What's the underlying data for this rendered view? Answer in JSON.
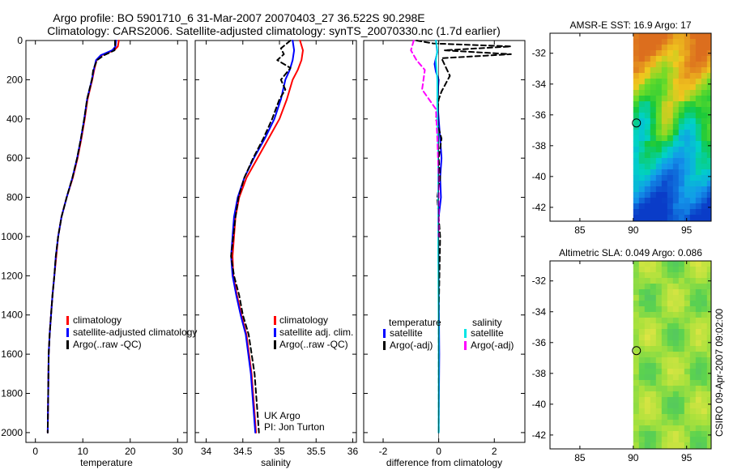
{
  "title_line1": "Argo profile: BO 5901710_6 31-Mar-2007 20070403_27 36.522S 90.298E",
  "title_line2": "Climatology: CARS2006. Satellite-adjusted climatology: synTS_20070330.nc (1.7d earlier)",
  "side_label": "CSIRO 09-Apr-2007 09:02:00",
  "colors": {
    "climatology": "#ff0000",
    "satellite": "#0000ff",
    "argo": "#000000",
    "sat_diff_salinity": "#00e5e5",
    "argo_diff_salinity": "#ff00ff"
  },
  "chart_data": [
    {
      "type": "line",
      "xlabel": "temperature",
      "xlim": [
        -2,
        32
      ],
      "ylim": [
        2050,
        0
      ],
      "xticks": [
        "0",
        "10",
        "20",
        "30"
      ],
      "yticks": [
        "0",
        "200",
        "400",
        "600",
        "800",
        "1000",
        "1200",
        "1400",
        "1600",
        "1800",
        "2000"
      ],
      "legend": [
        "climatology",
        "satellite-adjusted climatology",
        "Argo(..raw -QC)"
      ],
      "series": [
        {
          "name": "climatology",
          "x": [
            17.6,
            17.4,
            16.6,
            14.0,
            12.9,
            12.4,
            12.0,
            11.5,
            11.0,
            10.4,
            9.7,
            8.9,
            7.9,
            6.6,
            5.5,
            4.8,
            4.4,
            4.0,
            3.6,
            3.3,
            3.0,
            2.8,
            2.7,
            2.6
          ],
          "y": [
            0,
            30,
            50,
            75,
            100,
            150,
            200,
            250,
            300,
            400,
            500,
            600,
            700,
            800,
            900,
            1000,
            1100,
            1200,
            1300,
            1400,
            1500,
            1600,
            1800,
            2000
          ]
        },
        {
          "name": "satellite-adjusted climatology",
          "x": [
            17.0,
            16.9,
            16.2,
            13.8,
            12.8,
            12.3,
            11.9,
            11.4,
            10.9,
            10.3,
            9.6,
            8.8,
            7.8,
            6.6,
            5.5,
            4.8,
            4.3,
            4.0,
            3.6,
            3.3,
            3.0,
            2.8,
            2.7,
            2.6
          ],
          "y": [
            0,
            30,
            50,
            75,
            100,
            150,
            200,
            250,
            300,
            400,
            500,
            600,
            700,
            800,
            900,
            1000,
            1100,
            1200,
            1300,
            1400,
            1500,
            1600,
            1800,
            2000
          ]
        },
        {
          "name": "Argo(..raw -QC)",
          "x": [
            16.8,
            16.8,
            16.7,
            14.5,
            13.0,
            12.2,
            11.9,
            11.4,
            10.9,
            10.3,
            9.6,
            8.8,
            7.8,
            6.6,
            5.5,
            4.8,
            4.3,
            4.0,
            3.6,
            3.3,
            3.0,
            2.8,
            2.7,
            2.6
          ],
          "y": [
            0,
            30,
            50,
            75,
            100,
            150,
            200,
            250,
            300,
            400,
            500,
            600,
            700,
            800,
            900,
            1000,
            1100,
            1200,
            1300,
            1400,
            1500,
            1600,
            1800,
            2000
          ]
        }
      ]
    },
    {
      "type": "line",
      "xlabel": "salinity",
      "xlim": [
        33.85,
        36.05
      ],
      "ylim": [
        2050,
        0
      ],
      "xticks": [
        "34",
        "34.5",
        "35",
        "35.5",
        "36"
      ],
      "legend": [
        "climatology",
        "satellite adj. clim.",
        "Argo(..raw -QC)"
      ],
      "annotation_line1": "UK Argo",
      "annotation_line2": "PI: Jon Turton",
      "series": [
        {
          "name": "climatology",
          "x": [
            35.28,
            35.32,
            35.3,
            35.25,
            35.18,
            35.1,
            35.0,
            34.85,
            34.7,
            34.55,
            34.45,
            34.4,
            34.38,
            34.36,
            34.37,
            34.42,
            34.48,
            34.55,
            34.62,
            34.68
          ],
          "y": [
            0,
            50,
            100,
            150,
            200,
            300,
            400,
            500,
            600,
            700,
            800,
            900,
            1000,
            1100,
            1200,
            1300,
            1400,
            1500,
            1700,
            2000
          ]
        },
        {
          "name": "satellite adj. clim.",
          "x": [
            35.18,
            35.2,
            35.18,
            35.14,
            35.08,
            35.02,
            34.93,
            34.8,
            34.65,
            34.52,
            34.43,
            34.38,
            34.36,
            34.34,
            34.36,
            34.41,
            34.47,
            34.54,
            34.61,
            34.67
          ],
          "y": [
            0,
            50,
            100,
            150,
            200,
            300,
            400,
            500,
            600,
            700,
            800,
            900,
            1000,
            1100,
            1200,
            1300,
            1400,
            1500,
            1700,
            2000
          ]
        },
        {
          "name": "Argo(..raw -QC)",
          "x": [
            35.15,
            35.02,
            35.06,
            34.97,
            35.15,
            35.02,
            35.08,
            35.0,
            34.9,
            34.78,
            34.64,
            34.52,
            34.44,
            34.4,
            34.37,
            34.34,
            34.38,
            34.45,
            34.5,
            34.58,
            34.66,
            34.72
          ],
          "y": [
            0,
            40,
            70,
            100,
            140,
            200,
            250,
            300,
            400,
            500,
            600,
            700,
            800,
            900,
            1000,
            1100,
            1200,
            1300,
            1400,
            1500,
            1700,
            2000
          ]
        }
      ]
    },
    {
      "type": "line",
      "xlabel": "difference from climatology",
      "xlim": [
        -2.7,
        3.1
      ],
      "ylim": [
        2050,
        0
      ],
      "xticks": [
        "-2",
        "0",
        "2"
      ],
      "legend_groups": [
        {
          "title": "temperature",
          "items": [
            "satellite",
            "Argo(-adj)"
          ]
        },
        {
          "title": "salinity",
          "items": [
            "satellite",
            "Argo(-adj)"
          ]
        }
      ],
      "series": [
        {
          "name": "temperature satellite",
          "x": [
            -0.1,
            -0.05,
            -0.15,
            -0.1,
            0.0,
            -0.05,
            0.0,
            0.05,
            0.1,
            0.05,
            0.08,
            0.0,
            -0.02,
            0.0,
            0.02,
            0.0
          ],
          "y": [
            0,
            60,
            120,
            160,
            200,
            300,
            400,
            500,
            600,
            700,
            800,
            900,
            1000,
            1200,
            1600,
            2000
          ]
        },
        {
          "name": "temperature Argo(-adj)",
          "x": [
            -0.8,
            -0.2,
            2.6,
            0.2,
            2.6,
            0.1,
            0.2,
            0.4,
            0.1,
            0.0,
            -0.1,
            0.1,
            0.0,
            0.05,
            -0.05,
            0.0,
            0.05,
            0.0,
            0.0
          ],
          "y": [
            0,
            15,
            30,
            50,
            70,
            90,
            120,
            180,
            260,
            300,
            400,
            500,
            600,
            700,
            800,
            900,
            1000,
            1400,
            2000
          ]
        },
        {
          "name": "salinity satellite",
          "x": [
            -0.1,
            -0.05,
            -0.1,
            -0.05,
            -0.05,
            -0.02,
            -0.02,
            0.0,
            0.0
          ],
          "y": [
            0,
            50,
            100,
            200,
            400,
            600,
            1000,
            1500,
            2000
          ]
        },
        {
          "name": "salinity Argo(-adj)",
          "x": [
            -0.9,
            -1.0,
            -0.8,
            -0.5,
            -0.6,
            -0.1,
            -0.05,
            0.0,
            0.0
          ],
          "y": [
            0,
            50,
            100,
            150,
            250,
            350,
            500,
            700,
            1000
          ]
        }
      ]
    }
  ],
  "maps": [
    {
      "title": "AMSR-E SST: 16.9 Argo: 17",
      "xticks": [
        "85",
        "90",
        "95"
      ],
      "yticks": [
        "-32",
        "-34",
        "-36",
        "-38",
        "-40",
        "-42"
      ],
      "xlim": [
        82.2,
        97.3
      ],
      "ylim": [
        -42.9,
        -30.7
      ],
      "data_lon_start": 90.0,
      "argo_position": {
        "lon": 90.298,
        "lat": -36.522
      }
    },
    {
      "title": "Altimetric SLA: 0.049 Argo: 0.086",
      "xticks": [
        "85",
        "90",
        "95"
      ],
      "yticks": [
        "-32",
        "-34",
        "-36",
        "-38",
        "-40",
        "-42"
      ],
      "xlim": [
        82.2,
        97.3
      ],
      "ylim": [
        -42.9,
        -30.7
      ],
      "data_lon_start": 90.0,
      "argo_position": {
        "lon": 90.298,
        "lat": -36.522
      }
    }
  ]
}
